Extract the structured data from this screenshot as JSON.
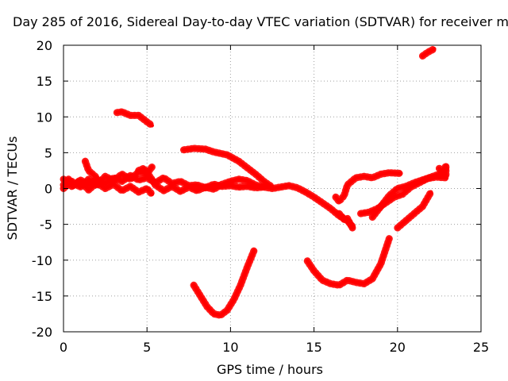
{
  "chart_data": {
    "type": "scatter",
    "title": "Day 285 of 2016, Sidereal Day-to-day VTEC variation (SDTVAR) for receiver m",
    "xlabel": "GPS time / hours",
    "ylabel": "SDTVAR / TECUs",
    "xlim": [
      0,
      25
    ],
    "ylim": [
      -20,
      20
    ],
    "xticks": [
      0,
      5,
      10,
      15,
      20,
      25
    ],
    "yticks": [
      -20,
      -15,
      -10,
      -5,
      0,
      5,
      10,
      15,
      20
    ],
    "grid": true,
    "series_color": "#ff0000",
    "series": [
      {
        "points": [
          [
            0,
            0.5
          ],
          [
            0.3,
            1.3
          ],
          [
            0.6,
            0.4
          ],
          [
            1,
            1.2
          ],
          [
            1.5,
            0.6
          ],
          [
            2,
            1.3
          ],
          [
            2.5,
            0.7
          ],
          [
            3,
            1.5
          ],
          [
            3.5,
            1
          ],
          [
            4,
            1.8
          ],
          [
            4.5,
            1.2
          ],
          [
            5,
            1.5
          ],
          [
            5.5,
            0.8
          ],
          [
            6,
            1.5
          ],
          [
            6.5,
            0.7
          ],
          [
            7,
            1
          ],
          [
            7.5,
            0.4
          ],
          [
            8,
            0.5
          ],
          [
            8.5,
            0.1
          ],
          [
            9,
            0.6
          ],
          [
            9.5,
            0.3
          ],
          [
            10,
            0.4
          ],
          [
            10.5,
            0.2
          ],
          [
            11,
            0.3
          ],
          [
            11.5,
            0.1
          ],
          [
            12,
            0.2
          ],
          [
            12.5,
            0
          ],
          [
            13,
            0.2
          ],
          [
            13.5,
            0.4
          ],
          [
            14,
            0.1
          ],
          [
            14.5,
            -0.5
          ],
          [
            15,
            -1.2
          ],
          [
            15.5,
            -2
          ],
          [
            16,
            -2.8
          ],
          [
            16.5,
            -3.8
          ],
          [
            17,
            -4.5
          ],
          [
            17.3,
            -5.3
          ]
        ]
      },
      {
        "points": [
          [
            0,
            1.3
          ],
          [
            0.5,
            0.3
          ],
          [
            1,
            1
          ],
          [
            1.5,
            -0.2
          ],
          [
            2,
            0.8
          ],
          [
            2.5,
            0
          ],
          [
            3,
            0.6
          ],
          [
            3.5,
            -0.3
          ],
          [
            4,
            0.3
          ],
          [
            4.5,
            -0.5
          ],
          [
            5,
            0
          ],
          [
            5.3,
            -0.8
          ]
        ]
      },
      {
        "points": [
          [
            0,
            0
          ],
          [
            0.5,
            1
          ],
          [
            1,
            0.2
          ],
          [
            1.5,
            1.3
          ],
          [
            2,
            0.5
          ],
          [
            2.5,
            1.7
          ],
          [
            3,
            1.1
          ],
          [
            3.5,
            2
          ],
          [
            4,
            1.3
          ],
          [
            4.5,
            2.3
          ],
          [
            5,
            2.1
          ],
          [
            5.3,
            3
          ]
        ]
      },
      {
        "points": [
          [
            1.3,
            3.8
          ],
          [
            1.5,
            2.5
          ],
          [
            2,
            1.5
          ]
        ]
      },
      {
        "points": [
          [
            4.5,
            2.5
          ],
          [
            4.8,
            2.8
          ],
          [
            5.2,
            1.6
          ],
          [
            5.5,
            0.5
          ],
          [
            6,
            -0.3
          ],
          [
            6.5,
            0.3
          ],
          [
            7,
            -0.4
          ],
          [
            7.5,
            0.2
          ],
          [
            8,
            -0.3
          ],
          [
            8.5,
            0.2
          ],
          [
            9,
            -0.1
          ],
          [
            9.5,
            0.6
          ],
          [
            10,
            1
          ],
          [
            10.5,
            1.3
          ],
          [
            11,
            1.1
          ],
          [
            11.5,
            0.5
          ],
          [
            12,
            0.2
          ]
        ]
      },
      {
        "points": [
          [
            7.2,
            5.4
          ],
          [
            7.8,
            5.6
          ],
          [
            8.5,
            5.5
          ],
          [
            9,
            5.1
          ],
          [
            9.8,
            4.7
          ],
          [
            10.5,
            3.8
          ],
          [
            11,
            2.9
          ],
          [
            11.5,
            2
          ],
          [
            12,
            1
          ],
          [
            12.5,
            0.2
          ]
        ]
      },
      {
        "points": [
          [
            3.2,
            10.6
          ],
          [
            3.5,
            10.7
          ],
          [
            4,
            10.2
          ],
          [
            4.5,
            10.2
          ],
          [
            5,
            9.3
          ],
          [
            5.3,
            8.8
          ]
        ]
      },
      {
        "points": [
          [
            7.8,
            -13.5
          ],
          [
            8.2,
            -15
          ],
          [
            8.6,
            -16.5
          ],
          [
            9,
            -17.5
          ],
          [
            9.4,
            -17.7
          ],
          [
            9.8,
            -17
          ],
          [
            10.2,
            -15.5
          ],
          [
            10.6,
            -13.5
          ],
          [
            11,
            -11
          ],
          [
            11.4,
            -8.7
          ]
        ]
      },
      {
        "points": [
          [
            14.6,
            -10.1
          ],
          [
            15,
            -11.5
          ],
          [
            15.5,
            -12.8
          ],
          [
            16,
            -13.3
          ],
          [
            16.5,
            -13.5
          ],
          [
            17,
            -12.8
          ],
          [
            17.5,
            -13.1
          ],
          [
            18,
            -13.3
          ],
          [
            18.5,
            -12.6
          ],
          [
            19,
            -10.5
          ],
          [
            19.5,
            -7
          ]
        ]
      },
      {
        "points": [
          [
            16.3,
            -1.2
          ],
          [
            16.5,
            -1.8
          ],
          [
            16.8,
            -1
          ],
          [
            17,
            0.5
          ],
          [
            17.5,
            1.5
          ],
          [
            18,
            1.7
          ],
          [
            18.5,
            1.5
          ],
          [
            19,
            2
          ],
          [
            19.5,
            2.2
          ],
          [
            20.2,
            2.1
          ]
        ]
      },
      {
        "points": [
          [
            16.5,
            -3.5
          ],
          [
            16.8,
            -4.3
          ],
          [
            17,
            -4.2
          ],
          [
            17.3,
            -5.5
          ]
        ]
      },
      {
        "points": [
          [
            17.8,
            -3.5
          ],
          [
            18.3,
            -3.3
          ],
          [
            18.8,
            -2.8
          ],
          [
            19.3,
            -2
          ],
          [
            19.8,
            -1.2
          ],
          [
            20.3,
            -0.8
          ],
          [
            20.8,
            0.2
          ],
          [
            21.3,
            0.8
          ],
          [
            21.8,
            1.4
          ],
          [
            22.3,
            1.6
          ],
          [
            22.9,
            1.5
          ]
        ]
      },
      {
        "points": [
          [
            18.5,
            -4
          ],
          [
            19,
            -2.5
          ],
          [
            19.5,
            -1
          ],
          [
            20,
            0
          ],
          [
            20.5,
            0.3
          ],
          [
            21,
            0.8
          ],
          [
            21.5,
            1.2
          ],
          [
            22,
            1.6
          ],
          [
            22.5,
            2
          ],
          [
            22.9,
            2.8
          ]
        ]
      },
      {
        "points": [
          [
            20,
            -5.5
          ],
          [
            20.5,
            -4.5
          ],
          [
            21,
            -3.5
          ],
          [
            21.5,
            -2.5
          ],
          [
            22,
            -0.5
          ]
        ]
      },
      {
        "points": [
          [
            22.5,
            2.8
          ],
          [
            22.7,
            2.2
          ],
          [
            22.9,
            3.2
          ],
          [
            22.9,
            1.6
          ]
        ]
      },
      {
        "points": [
          [
            21.5,
            18.5
          ],
          [
            21.8,
            19
          ],
          [
            22.2,
            19.5
          ]
        ]
      }
    ]
  }
}
